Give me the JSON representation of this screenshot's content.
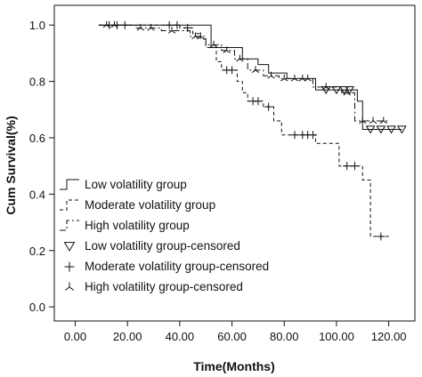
{
  "chart_data": {
    "type": "line",
    "subtype": "kaplan-meier step",
    "xlabel": "Time(Months)",
    "ylabel": "Cum Survival(%)",
    "xlim": [
      -8,
      130
    ],
    "ylim": [
      -0.05,
      1.07
    ],
    "x_ticks": [
      0,
      20,
      40,
      60,
      80,
      100,
      120
    ],
    "x_tick_labels": [
      "0.00",
      "20.00",
      "40.00",
      "60.00",
      "80.00",
      "100.00",
      "120.00"
    ],
    "y_ticks": [
      0.0,
      0.2,
      0.4,
      0.6,
      0.8,
      1.0
    ],
    "y_tick_labels": [
      "0.0",
      "0.2",
      "0.4",
      "0.6",
      "0.8",
      "1.0"
    ],
    "grid": false,
    "legend_position": "lower-left",
    "legend_entries": [
      "Low volatility group",
      "Moderate volatility group",
      "High volatility group",
      "Low volatility group-censored",
      "Moderate volatility group-censored",
      "High volatility group-censored"
    ],
    "series": [
      {
        "name": "Low volatility group",
        "line_style": "solid",
        "steps": [
          [
            9,
            1.0
          ],
          [
            52,
            1.0
          ],
          [
            52,
            0.92
          ],
          [
            64,
            0.92
          ],
          [
            64,
            0.88
          ],
          [
            70,
            0.88
          ],
          [
            70,
            0.86
          ],
          [
            74,
            0.86
          ],
          [
            74,
            0.83
          ],
          [
            81,
            0.83
          ],
          [
            81,
            0.81
          ],
          [
            92,
            0.81
          ],
          [
            92,
            0.77
          ],
          [
            108,
            0.77
          ],
          [
            108,
            0.73
          ],
          [
            110,
            0.73
          ],
          [
            110,
            0.63
          ],
          [
            125,
            0.63
          ]
        ],
        "censored": [
          [
            96,
            0.77
          ],
          [
            100,
            0.77
          ],
          [
            103,
            0.77
          ],
          [
            105,
            0.77
          ],
          [
            113,
            0.63
          ],
          [
            117,
            0.63
          ],
          [
            121,
            0.63
          ],
          [
            125,
            0.63
          ]
        ]
      },
      {
        "name": "Moderate volatility group",
        "line_style": "dashed",
        "steps": [
          [
            9,
            1.0
          ],
          [
            40,
            1.0
          ],
          [
            40,
            0.99
          ],
          [
            45,
            0.99
          ],
          [
            45,
            0.97
          ],
          [
            48,
            0.97
          ],
          [
            48,
            0.95
          ],
          [
            50,
            0.95
          ],
          [
            50,
            0.92
          ],
          [
            54,
            0.92
          ],
          [
            54,
            0.87
          ],
          [
            56,
            0.87
          ],
          [
            56,
            0.84
          ],
          [
            62,
            0.84
          ],
          [
            62,
            0.8
          ],
          [
            64,
            0.8
          ],
          [
            64,
            0.76
          ],
          [
            66,
            0.76
          ],
          [
            66,
            0.73
          ],
          [
            72,
            0.73
          ],
          [
            72,
            0.71
          ],
          [
            76,
            0.71
          ],
          [
            76,
            0.66
          ],
          [
            79,
            0.66
          ],
          [
            79,
            0.61
          ],
          [
            92,
            0.61
          ],
          [
            92,
            0.58
          ],
          [
            101,
            0.58
          ],
          [
            101,
            0.5
          ],
          [
            110,
            0.5
          ],
          [
            110,
            0.45
          ],
          [
            113,
            0.45
          ],
          [
            113,
            0.25
          ],
          [
            120,
            0.25
          ]
        ],
        "censored": [
          [
            13,
            1.0
          ],
          [
            16,
            1.0
          ],
          [
            19,
            1.0
          ],
          [
            36,
            1.0
          ],
          [
            39,
            1.0
          ],
          [
            43,
            0.99
          ],
          [
            58,
            0.84
          ],
          [
            60,
            0.84
          ],
          [
            68,
            0.73
          ],
          [
            70,
            0.73
          ],
          [
            74,
            0.71
          ],
          [
            84,
            0.61
          ],
          [
            87,
            0.61
          ],
          [
            89,
            0.61
          ],
          [
            91,
            0.61
          ],
          [
            104,
            0.5
          ],
          [
            107,
            0.5
          ],
          [
            117,
            0.25
          ]
        ]
      },
      {
        "name": "High volatility group",
        "line_style": "dash-dot",
        "steps": [
          [
            9,
            1.0
          ],
          [
            23,
            1.0
          ],
          [
            23,
            0.99
          ],
          [
            33,
            0.99
          ],
          [
            33,
            0.98
          ],
          [
            44,
            0.98
          ],
          [
            44,
            0.96
          ],
          [
            50,
            0.96
          ],
          [
            50,
            0.93
          ],
          [
            56,
            0.93
          ],
          [
            56,
            0.91
          ],
          [
            61,
            0.91
          ],
          [
            61,
            0.88
          ],
          [
            66,
            0.88
          ],
          [
            66,
            0.84
          ],
          [
            72,
            0.84
          ],
          [
            72,
            0.82
          ],
          [
            78,
            0.82
          ],
          [
            78,
            0.81
          ],
          [
            91,
            0.81
          ],
          [
            91,
            0.78
          ],
          [
            102,
            0.78
          ],
          [
            102,
            0.76
          ],
          [
            107,
            0.76
          ],
          [
            107,
            0.66
          ],
          [
            120,
            0.66
          ]
        ],
        "censored": [
          [
            12,
            1.0
          ],
          [
            15,
            1.0
          ],
          [
            25,
            0.99
          ],
          [
            29,
            0.99
          ],
          [
            37,
            0.98
          ],
          [
            46,
            0.96
          ],
          [
            48,
            0.96
          ],
          [
            53,
            0.93
          ],
          [
            58,
            0.91
          ],
          [
            63,
            0.88
          ],
          [
            69,
            0.84
          ],
          [
            75,
            0.82
          ],
          [
            80,
            0.81
          ],
          [
            84,
            0.81
          ],
          [
            87,
            0.81
          ],
          [
            89,
            0.81
          ],
          [
            96,
            0.78
          ],
          [
            104,
            0.76
          ],
          [
            110,
            0.66
          ],
          [
            114,
            0.66
          ],
          [
            118,
            0.66
          ]
        ]
      }
    ]
  }
}
